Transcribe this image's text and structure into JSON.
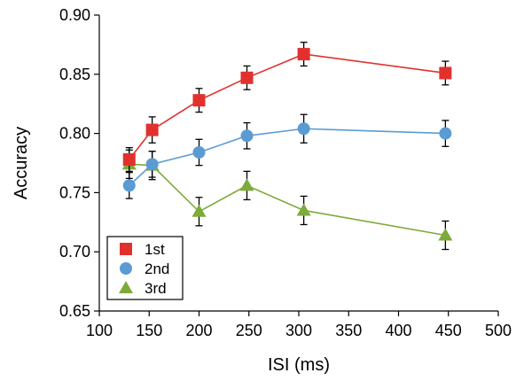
{
  "chart_data": {
    "type": "line",
    "title": "",
    "xlabel": "ISI (ms)",
    "ylabel": "Accuracy",
    "xlim": [
      100,
      500
    ],
    "ylim": [
      0.65,
      0.9
    ],
    "xticks": [
      100,
      150,
      200,
      250,
      300,
      350,
      400,
      450,
      500
    ],
    "yticks": [
      "0.65",
      "0.70",
      "0.75",
      "0.80",
      "0.85",
      "0.90"
    ],
    "grid": false,
    "legend_position": "bottom-left",
    "x": [
      130,
      153,
      200,
      248,
      305,
      447
    ],
    "series": [
      {
        "name": "1st",
        "color": "#e2312d",
        "marker": "square",
        "values": [
          0.778,
          0.803,
          0.828,
          0.847,
          0.867,
          0.851
        ],
        "errors": [
          0.01,
          0.011,
          0.01,
          0.01,
          0.01,
          0.01
        ]
      },
      {
        "name": "2nd",
        "color": "#5a9bd3",
        "marker": "circle",
        "values": [
          0.756,
          0.774,
          0.784,
          0.798,
          0.804,
          0.8
        ],
        "errors": [
          0.011,
          0.011,
          0.011,
          0.011,
          0.012,
          0.011
        ]
      },
      {
        "name": "3rd",
        "color": "#7daa3a",
        "marker": "triangle",
        "values": [
          0.774,
          0.773,
          0.734,
          0.756,
          0.735,
          0.714
        ],
        "errors": [
          0.012,
          0.012,
          0.012,
          0.012,
          0.012,
          0.012
        ]
      }
    ]
  }
}
